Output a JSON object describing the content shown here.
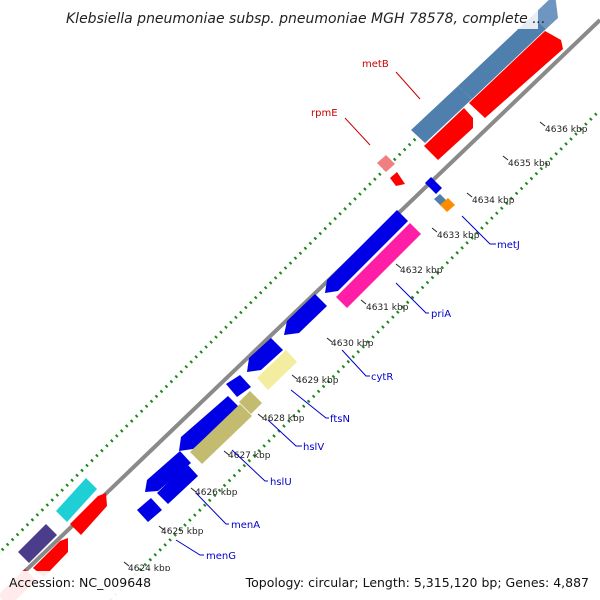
{
  "title": "Klebsiella pneumoniae subsp. pneumoniae MGH 78578, complete ...",
  "footer": {
    "accession_label": "Accession: NC_009648",
    "summary": "Topology: circular; Length: 5,315,120 bp; Genes: 4,887"
  },
  "ticks": [
    "4624 kbp",
    "4625 kbp",
    "4626 kbp",
    "4627 kbp",
    "4628 kbp",
    "4629 kbp",
    "4630 kbp",
    "4631 kbp",
    "4632 kbp",
    "4633 kbp",
    "4634 kbp",
    "4635 kbp",
    "4636 kbp"
  ],
  "genes_forward": [
    {
      "label": "metB",
      "color": "#cc0000"
    },
    {
      "label": "rpmE",
      "color": "#cc0000"
    }
  ],
  "genes_reverse": [
    {
      "label": "metJ",
      "color": "#0000cc"
    },
    {
      "label": "priA",
      "color": "#0000cc"
    },
    {
      "label": "cytR",
      "color": "#0000cc"
    },
    {
      "label": "ftsN",
      "color": "#0000cc"
    },
    {
      "label": "hslV",
      "color": "#0000cc"
    },
    {
      "label": "hslU",
      "color": "#0000cc"
    },
    {
      "label": "menA",
      "color": "#0000cc"
    },
    {
      "label": "menG",
      "color": "#0000cc"
    }
  ],
  "colors": {
    "cds_red": "#ff0000",
    "cds_blue": "#0000e6",
    "steel_blue": "#4f7fad",
    "pink": "#ff1ea6",
    "khaki": "#c2bb70",
    "pale_yellow": "#f3eda0",
    "teal": "#1fcfd6",
    "purple": "#4b3d8c",
    "light_red": "#f08080",
    "orange": "#ff8c00",
    "backbone": "#8a8a8a",
    "gc_green": "#1a8a1a"
  }
}
